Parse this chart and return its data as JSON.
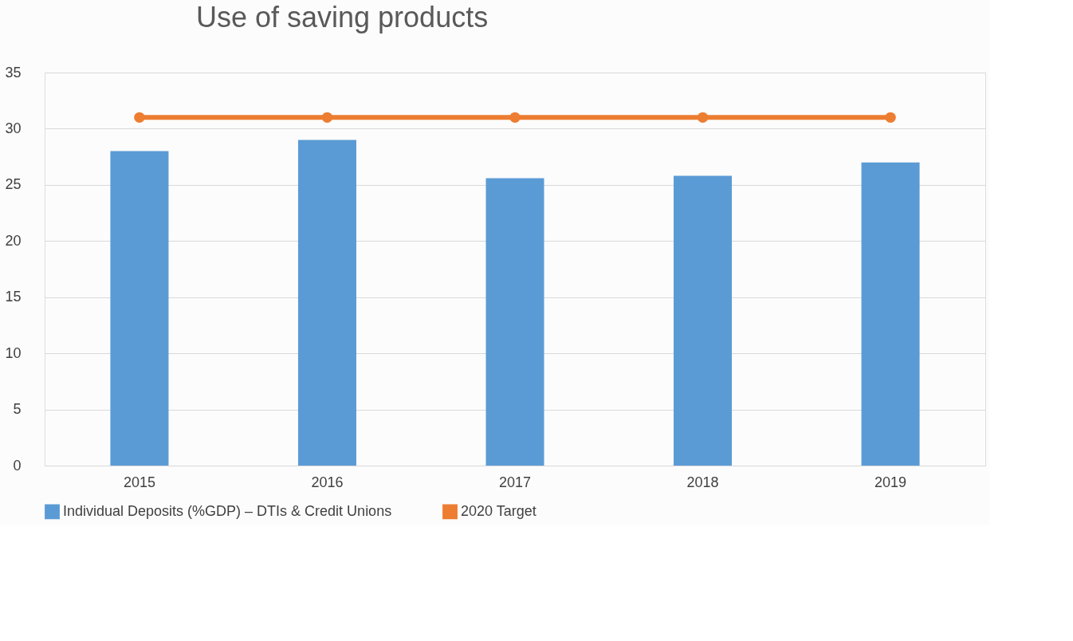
{
  "chart_data": {
    "type": "bar",
    "title": "Use of saving products",
    "categories": [
      "2015",
      "2016",
      "2017",
      "2018",
      "2019"
    ],
    "series": [
      {
        "name": "Individual Deposits (%GDP) – DTIs & Credit Unions",
        "color": "#5b9bd5",
        "values": [
          28,
          29,
          25.6,
          25.8,
          27
        ]
      },
      {
        "name": "2020 Target",
        "type": "line",
        "color": "#ed7d31",
        "marker": "circle",
        "values": [
          31,
          31,
          31,
          31,
          31
        ]
      }
    ],
    "ylim": [
      0,
      35
    ],
    "yticks": [
      0,
      5,
      10,
      15,
      20,
      25,
      30,
      35
    ],
    "grid": "y",
    "legend": "bottom"
  }
}
